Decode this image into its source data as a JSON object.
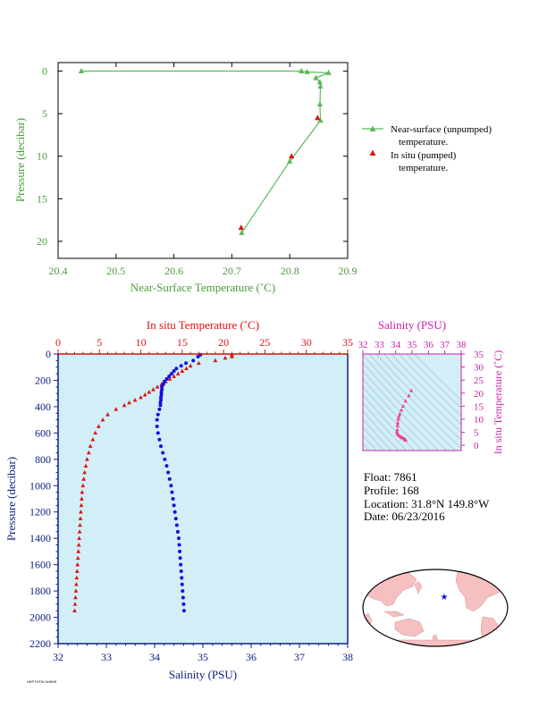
{
  "colors": {
    "green": "#5bb85b",
    "green_axis": "#4a9a3a",
    "red": "#dd1111",
    "blue": "#1111dd",
    "magenta": "#cc22aa",
    "pink": "#ee4488",
    "plot_bg": "#d2eef6",
    "navy": "#102080",
    "land": "#f6c0c0",
    "ocean": "#ffffff"
  },
  "chart_data": [
    {
      "type": "line",
      "xlabel": "Near-Surface Temperature (˚C)",
      "ylabel": "Pressure (decibar)",
      "xlim": [
        20.4,
        20.9
      ],
      "ylim": [
        22,
        -1
      ],
      "xticks": [
        "20.4",
        "20.5",
        "20.6",
        "20.7",
        "20.8",
        "20.9"
      ],
      "yticks": [
        "0",
        "5",
        "10",
        "15",
        "20"
      ],
      "series": [
        {
          "name": "Near-surface (unpumped) temperature.",
          "points": [
            [
              20.44,
              0.0
            ],
            [
              20.82,
              0.0
            ],
            [
              20.83,
              0.1
            ],
            [
              20.867,
              0.2
            ],
            [
              20.845,
              0.8
            ],
            [
              20.852,
              1.3
            ],
            [
              20.853,
              1.8
            ],
            [
              20.852,
              3.9
            ],
            [
              20.853,
              5.8
            ],
            [
              20.8,
              10.6
            ],
            [
              20.717,
              19.0
            ]
          ]
        },
        {
          "name": "In situ (pumped) temperature.",
          "points": [
            [
              20.848,
              5.5
            ],
            [
              20.803,
              10.0
            ],
            [
              20.716,
              18.4
            ]
          ]
        }
      ],
      "legend": [
        "Near-surface (unpumped)",
        "temperature.",
        "In situ (pumped)",
        "temperature."
      ]
    },
    {
      "type": "scatter",
      "top_xlabel": "In situ Temperature (˚C)",
      "bottom_xlabel": "Salinity (PSU)",
      "ylabel": "Pressure (decibar)",
      "temp_lim": [
        0,
        35
      ],
      "sal_lim": [
        32,
        38
      ],
      "ylim": [
        2200,
        0
      ],
      "temp_ticks": [
        "0",
        "5",
        "10",
        "15",
        "20",
        "25",
        "30",
        "35"
      ],
      "sal_ticks": [
        "32",
        "33",
        "34",
        "35",
        "36",
        "37",
        "38"
      ],
      "yticks": [
        "0",
        "200",
        "400",
        "600",
        "800",
        "1000",
        "1200",
        "1400",
        "1600",
        "1800",
        "2000",
        "2200"
      ],
      "temperature_profile": [
        [
          21.0,
          5
        ],
        [
          21.0,
          20
        ],
        [
          20.2,
          30
        ],
        [
          19.0,
          50
        ],
        [
          17.0,
          70
        ],
        [
          16.0,
          90
        ],
        [
          15.5,
          110
        ],
        [
          15.0,
          130
        ],
        [
          14.5,
          150
        ],
        [
          14.0,
          170
        ],
        [
          13.5,
          190
        ],
        [
          13.0,
          210
        ],
        [
          12.5,
          230
        ],
        [
          12.0,
          250
        ],
        [
          11.5,
          270
        ],
        [
          11.0,
          290
        ],
        [
          10.5,
          310
        ],
        [
          10.0,
          330
        ],
        [
          9.3,
          350
        ],
        [
          8.6,
          370
        ],
        [
          8.0,
          390
        ],
        [
          7.0,
          420
        ],
        [
          6.0,
          460
        ],
        [
          5.4,
          500
        ],
        [
          4.9,
          550
        ],
        [
          4.5,
          600
        ],
        [
          4.2,
          650
        ],
        [
          3.9,
          700
        ],
        [
          3.7,
          750
        ],
        [
          3.5,
          800
        ],
        [
          3.35,
          850
        ],
        [
          3.2,
          900
        ],
        [
          3.1,
          950
        ],
        [
          3.0,
          1000
        ],
        [
          2.9,
          1050
        ],
        [
          2.85,
          1100
        ],
        [
          2.8,
          1150
        ],
        [
          2.75,
          1200
        ],
        [
          2.7,
          1250
        ],
        [
          2.65,
          1300
        ],
        [
          2.6,
          1350
        ],
        [
          2.55,
          1400
        ],
        [
          2.5,
          1450
        ],
        [
          2.45,
          1500
        ],
        [
          2.4,
          1550
        ],
        [
          2.35,
          1600
        ],
        [
          2.3,
          1650
        ],
        [
          2.25,
          1700
        ],
        [
          2.2,
          1750
        ],
        [
          2.15,
          1800
        ],
        [
          2.1,
          1850
        ],
        [
          2.05,
          1900
        ],
        [
          2.0,
          1950
        ]
      ],
      "salinity_profile": [
        [
          34.95,
          5
        ],
        [
          34.9,
          20
        ],
        [
          34.8,
          50
        ],
        [
          34.65,
          70
        ],
        [
          34.55,
          90
        ],
        [
          34.45,
          110
        ],
        [
          34.4,
          130
        ],
        [
          34.35,
          150
        ],
        [
          34.3,
          170
        ],
        [
          34.25,
          190
        ],
        [
          34.2,
          210
        ],
        [
          34.18,
          230
        ],
        [
          34.15,
          250
        ],
        [
          34.15,
          270
        ],
        [
          34.14,
          290
        ],
        [
          34.14,
          310
        ],
        [
          34.13,
          330
        ],
        [
          34.13,
          350
        ],
        [
          34.12,
          370
        ],
        [
          34.12,
          390
        ],
        [
          34.1,
          420
        ],
        [
          34.07,
          460
        ],
        [
          34.05,
          500
        ],
        [
          34.05,
          550
        ],
        [
          34.07,
          600
        ],
        [
          34.1,
          650
        ],
        [
          34.13,
          700
        ],
        [
          34.17,
          750
        ],
        [
          34.21,
          800
        ],
        [
          34.25,
          850
        ],
        [
          34.28,
          900
        ],
        [
          34.31,
          950
        ],
        [
          34.34,
          1000
        ],
        [
          34.36,
          1050
        ],
        [
          34.38,
          1100
        ],
        [
          34.4,
          1150
        ],
        [
          34.42,
          1200
        ],
        [
          34.44,
          1250
        ],
        [
          34.46,
          1300
        ],
        [
          34.48,
          1350
        ],
        [
          34.5,
          1400
        ],
        [
          34.51,
          1450
        ],
        [
          34.52,
          1500
        ],
        [
          34.53,
          1550
        ],
        [
          34.54,
          1600
        ],
        [
          34.55,
          1650
        ],
        [
          34.56,
          1700
        ],
        [
          34.57,
          1750
        ],
        [
          34.58,
          1800
        ],
        [
          34.59,
          1850
        ],
        [
          34.6,
          1900
        ],
        [
          34.61,
          1950
        ]
      ]
    },
    {
      "type": "scatter",
      "top_xlabel": "Salinity (PSU)",
      "right_ylabel": "In situ Temperature (˚C)",
      "sal_lim": [
        32,
        38
      ],
      "temp_lim": [
        -2,
        35
      ],
      "sal_ticks": [
        "32",
        "33",
        "34",
        "35",
        "36",
        "37",
        "38"
      ],
      "temp_ticks": [
        "0",
        "5",
        "10",
        "15",
        "20",
        "25",
        "30",
        "35"
      ],
      "ts_points": [
        [
          34.95,
          21.0
        ],
        [
          34.8,
          19.0
        ],
        [
          34.6,
          17.0
        ],
        [
          34.45,
          15.0
        ],
        [
          34.35,
          13.5
        ],
        [
          34.25,
          12.0
        ],
        [
          34.2,
          11.0
        ],
        [
          34.15,
          10.0
        ],
        [
          34.13,
          8.6
        ],
        [
          34.12,
          7.5
        ],
        [
          34.1,
          6.0
        ],
        [
          34.07,
          5.2
        ],
        [
          34.1,
          4.6
        ],
        [
          34.15,
          4.1
        ],
        [
          34.22,
          3.7
        ],
        [
          34.3,
          3.3
        ],
        [
          34.38,
          3.0
        ],
        [
          34.45,
          2.8
        ],
        [
          34.52,
          2.5
        ],
        [
          34.58,
          2.2
        ],
        [
          34.61,
          2.0
        ]
      ]
    }
  ],
  "info": {
    "float": "Float:  7861",
    "profile": "Profile:  168",
    "location": "Location:  31.8°N  149.8°W",
    "date": "Date:  06/23/2016"
  },
  "footer_text": "HEPTHTAI NIIIIHE"
}
